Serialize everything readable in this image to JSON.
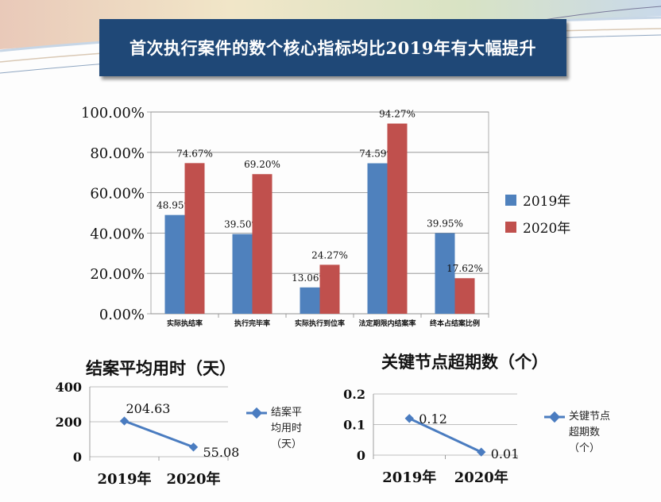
{
  "slide": {
    "title": "首次执行案件的数个核心指标均比2019年有大幅提升"
  },
  "colors": {
    "title_bg": "#1f4877",
    "series_2019": "#4f81bd",
    "series_2020": "#c0504d",
    "line": "#4a7cc0"
  },
  "chart_data": [
    {
      "type": "bar",
      "title": "",
      "categories": [
        "实际执结率",
        "执行完毕率",
        "实际执行到位率",
        "法定期限内结案率",
        "终本占结案比例"
      ],
      "series": [
        {
          "name": "2019年",
          "values": [
            48.95,
            39.5,
            13.06,
            74.59,
            39.95
          ],
          "labels": [
            "48.95%",
            "39.50%",
            "13.06%",
            "74.59%",
            "39.95%"
          ]
        },
        {
          "name": "2020年",
          "values": [
            74.67,
            69.2,
            24.27,
            94.27,
            17.62
          ],
          "labels": [
            "74.67%",
            "69.20%",
            "24.27%",
            "94.27%",
            "17.62%"
          ]
        }
      ],
      "ylim": [
        0,
        100
      ],
      "yticks": [
        "0.00%",
        "20.00%",
        "40.00%",
        "60.00%",
        "80.00%",
        "100.00%"
      ],
      "ytick_values": [
        0,
        20,
        40,
        60,
        80,
        100
      ],
      "grid": true,
      "legend_position": "right"
    },
    {
      "type": "line",
      "title": "结案平均用时（天）",
      "categories": [
        "2019年",
        "2020年"
      ],
      "series": [
        {
          "name": "结案平均用时（天）",
          "values": [
            204.63,
            55.08
          ],
          "labels": [
            "204.63",
            "55.08"
          ]
        }
      ],
      "ylim": [
        0,
        400
      ],
      "yticks": [
        "0",
        "200",
        "400"
      ],
      "ytick_values": [
        0,
        200,
        400
      ],
      "grid": true,
      "legend_position": "right"
    },
    {
      "type": "line",
      "title": "关键节点超期数（个）",
      "categories": [
        "2019年",
        "2020年"
      ],
      "series": [
        {
          "name": "关键节点超期数（个）",
          "values": [
            0.12,
            0.01
          ],
          "labels": [
            "0.12",
            "0.01"
          ]
        }
      ],
      "ylim": [
        0,
        0.2
      ],
      "yticks": [
        "0",
        "0.1",
        "0.2"
      ],
      "ytick_values": [
        0,
        0.1,
        0.2
      ],
      "grid": true,
      "legend_position": "right"
    }
  ],
  "legend_text": {
    "line1": "结案平\n均用时\n（天）",
    "line2": "关键节点\n超期数\n（个）"
  }
}
